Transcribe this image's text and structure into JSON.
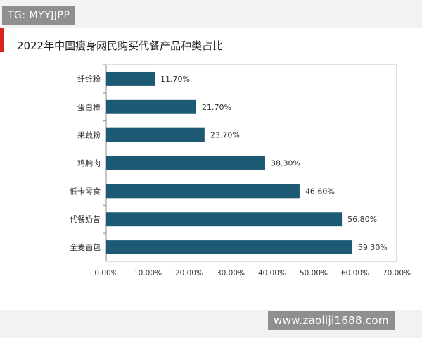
{
  "watermark_top": "TG: MYYJJPP",
  "watermark_bottom": "www.zaoliji1688.com",
  "colors": {
    "bar": "#1d5a73",
    "accent": "#d9261c",
    "watermark_bg": "#8f8f8f"
  },
  "chart_data": {
    "type": "bar",
    "orientation": "horizontal",
    "title": "2022年中国瘦身网民购买代餐产品种类占比",
    "xlabel": "",
    "ylabel": "",
    "categories": [
      "纤维粉",
      "蛋白棒",
      "果蔬粉",
      "鸡胸肉",
      "低卡零食",
      "代餐奶昔",
      "全麦面包"
    ],
    "values": [
      11.7,
      21.7,
      23.7,
      38.3,
      46.6,
      56.8,
      59.3
    ],
    "data_labels": [
      "11.70%",
      "21.70%",
      "23.70%",
      "38.30%",
      "46.60%",
      "56.80%",
      "59.30%"
    ],
    "xlim": [
      0,
      70
    ],
    "x_ticks": [
      "0.00%",
      "10.00%",
      "20.00%",
      "30.00%",
      "40.00%",
      "50.00%",
      "60.00%",
      "70.00%"
    ],
    "grid": false,
    "legend": "none"
  }
}
